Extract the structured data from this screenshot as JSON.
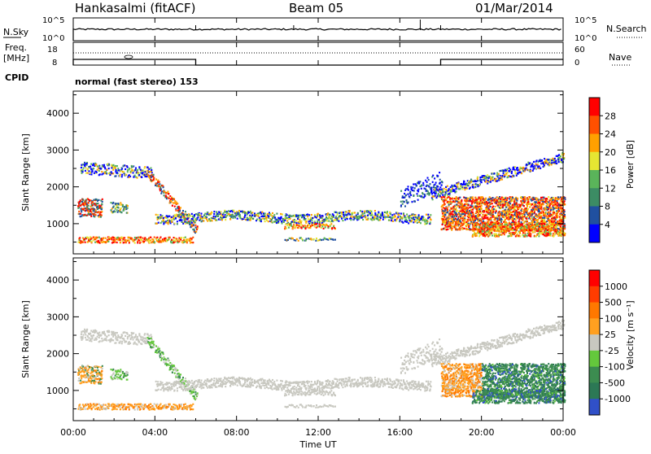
{
  "header": {
    "station": "Hankasalmi (fitACF)",
    "beam": "Beam 05",
    "date": "01/Mar/2014"
  },
  "noise_panel": {
    "left_label": "N.Sky",
    "right_label": "N.Search",
    "left_ticks": [
      "10^5",
      "10^0"
    ],
    "right_ticks": [
      "10^5",
      "10^0"
    ],
    "spikes_hours": [
      6.0,
      10.8,
      17.0,
      18.0
    ]
  },
  "freq_panel": {
    "left_label_1": "Freq.",
    "left_label_2": "[MHz]",
    "right_label": "Nave",
    "left_ticks": [
      "18",
      "8"
    ],
    "right_ticks": [
      "60",
      "0"
    ],
    "cpid_label": "CPID",
    "mode_text": "normal (fast stereo) 153",
    "freq_step_hours": [
      6.0,
      18.0
    ]
  },
  "colors": {
    "grey_scatter": "#c8c8c0",
    "power_scale": [
      "#0000ff",
      "#2050a0",
      "#3c8c64",
      "#5ab45a",
      "#e6e632",
      "#ffa000",
      "#ff5000",
      "#ff0000"
    ],
    "velocity_scale": [
      "#3050c8",
      "#2c7855",
      "#3c8c50",
      "#64c83c",
      "#c8c8c0",
      "#ffa020",
      "#ff7800",
      "#ff3c00",
      "#ff0000"
    ]
  },
  "chart_data": [
    {
      "type": "heatmap",
      "name": "Power",
      "ylabel": "Slant Range [km]",
      "colorbar_label": "Power [dB]",
      "colorbar_ticks": [
        "28",
        "24",
        "20",
        "16",
        "12",
        "8",
        "4"
      ],
      "xlim_hours": [
        0,
        24
      ],
      "ylim_km": [
        180,
        4600
      ],
      "yticks": [
        "1000",
        "2000",
        "3000",
        "4000"
      ],
      "ytick_values": [
        1000,
        2000,
        3000,
        4000
      ]
    },
    {
      "type": "heatmap",
      "name": "Velocity",
      "ylabel": "Slant Range [km]",
      "colorbar_label": "Velocity [m s⁻¹]",
      "colorbar_ticks": [
        "1000",
        "500",
        "100",
        "25",
        "-25",
        "-100",
        "-500",
        "-1000"
      ],
      "xlim_hours": [
        0,
        24
      ],
      "ylim_km": [
        180,
        4600
      ],
      "yticks": [
        "1000",
        "2000",
        "3000",
        "4000"
      ],
      "ytick_values": [
        1000,
        2000,
        3000,
        4000
      ]
    }
  ],
  "xaxis": {
    "label": "Time UT",
    "ticks": [
      "00:00",
      "04:00",
      "08:00",
      "12:00",
      "16:00",
      "20:00",
      "00:00"
    ],
    "tick_hours": [
      0,
      4,
      8,
      12,
      16,
      20,
      24
    ]
  }
}
